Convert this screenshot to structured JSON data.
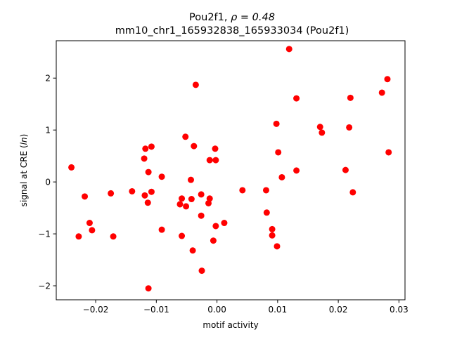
{
  "chart_data": {
    "type": "scatter",
    "title_line1_prefix": "Pou2f1, ",
    "title_line1_rho": "ρ = 0.48",
    "title_line2": "mm10_chr1_165932838_165933034 (Pou2f1)",
    "xlabel": "motif activity",
    "ylabel_prefix": "signal at CRE (",
    "ylabel_italic": "ln",
    "ylabel_suffix": ")",
    "xlim": [
      -0.0265,
      0.031
    ],
    "ylim": [
      -2.27,
      2.72
    ],
    "xticks": [
      -0.02,
      -0.01,
      0.0,
      0.01,
      0.02,
      0.03
    ],
    "xtick_labels": [
      "−0.02",
      "−0.01",
      "0.00",
      "0.01",
      "0.02",
      "0.03"
    ],
    "yticks": [
      -2,
      -1,
      0,
      1,
      2
    ],
    "ytick_labels": [
      "−2",
      "−1",
      "0",
      "1",
      "2"
    ],
    "marker_color": "#ff0000",
    "grid": false,
    "points": [
      {
        "x": -0.024,
        "y": 0.28
      },
      {
        "x": -0.0228,
        "y": -1.05
      },
      {
        "x": -0.0218,
        "y": -0.28
      },
      {
        "x": -0.021,
        "y": -0.79
      },
      {
        "x": -0.0206,
        "y": -0.93
      },
      {
        "x": -0.0175,
        "y": -0.22
      },
      {
        "x": -0.0171,
        "y": -1.05
      },
      {
        "x": -0.014,
        "y": -0.18
      },
      {
        "x": -0.012,
        "y": 0.45
      },
      {
        "x": -0.0119,
        "y": -0.26
      },
      {
        "x": -0.0118,
        "y": 0.64
      },
      {
        "x": -0.0114,
        "y": -0.4
      },
      {
        "x": -0.0113,
        "y": 0.19
      },
      {
        "x": -0.0113,
        "y": -2.05
      },
      {
        "x": -0.0108,
        "y": 0.68
      },
      {
        "x": -0.0108,
        "y": -0.19
      },
      {
        "x": -0.0091,
        "y": 0.1
      },
      {
        "x": -0.0091,
        "y": -0.92
      },
      {
        "x": -0.0061,
        "y": -0.43
      },
      {
        "x": -0.0058,
        "y": -0.32
      },
      {
        "x": -0.0058,
        "y": -1.04
      },
      {
        "x": -0.0052,
        "y": 0.87
      },
      {
        "x": -0.0051,
        "y": -0.47
      },
      {
        "x": -0.0043,
        "y": 0.04
      },
      {
        "x": -0.0042,
        "y": -0.33
      },
      {
        "x": -0.004,
        "y": -1.32
      },
      {
        "x": -0.0038,
        "y": 0.69
      },
      {
        "x": -0.0035,
        "y": 1.87
      },
      {
        "x": -0.0026,
        "y": -0.24
      },
      {
        "x": -0.0026,
        "y": -0.65
      },
      {
        "x": -0.0025,
        "y": -1.71
      },
      {
        "x": -0.0014,
        "y": -0.41
      },
      {
        "x": -0.0012,
        "y": -0.32
      },
      {
        "x": -0.0012,
        "y": 0.42
      },
      {
        "x": -0.0006,
        "y": -1.13
      },
      {
        "x": -0.0003,
        "y": 0.64
      },
      {
        "x": -0.0002,
        "y": -0.85
      },
      {
        "x": -0.0002,
        "y": 0.42
      },
      {
        "x": 0.0012,
        "y": -0.79
      },
      {
        "x": 0.0042,
        "y": -0.16
      },
      {
        "x": 0.0081,
        "y": -0.16
      },
      {
        "x": 0.0082,
        "y": -0.59
      },
      {
        "x": 0.0091,
        "y": -0.91
      },
      {
        "x": 0.0091,
        "y": -1.03
      },
      {
        "x": 0.0098,
        "y": 1.12
      },
      {
        "x": 0.0099,
        "y": -1.24
      },
      {
        "x": 0.0101,
        "y": 0.57
      },
      {
        "x": 0.0107,
        "y": 0.09
      },
      {
        "x": 0.0119,
        "y": 2.56
      },
      {
        "x": 0.0131,
        "y": 1.61
      },
      {
        "x": 0.0131,
        "y": 0.22
      },
      {
        "x": 0.017,
        "y": 1.06
      },
      {
        "x": 0.0173,
        "y": 0.95
      },
      {
        "x": 0.0212,
        "y": 0.23
      },
      {
        "x": 0.0218,
        "y": 1.05
      },
      {
        "x": 0.022,
        "y": 1.62
      },
      {
        "x": 0.0224,
        "y": -0.2
      },
      {
        "x": 0.0272,
        "y": 1.72
      },
      {
        "x": 0.0281,
        "y": 1.98
      },
      {
        "x": 0.0283,
        "y": 0.57
      }
    ]
  }
}
